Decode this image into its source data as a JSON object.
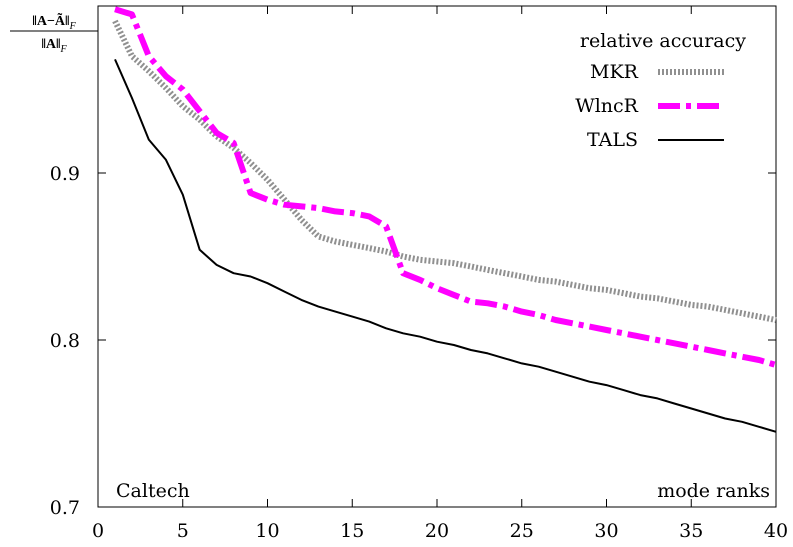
{
  "chart_data": {
    "type": "line",
    "ylabel": {
      "numerator": "‖A−Ã‖",
      "denominator": "‖A‖",
      "subscript": "F"
    },
    "xlabel": "mode ranks",
    "dataset_label": "Caltech",
    "legend_title": "relative accuracy",
    "legend_position": "top-right",
    "xlim": [
      0,
      40
    ],
    "ylim": [
      0.7,
      1.0
    ],
    "xticks": [
      0,
      5,
      10,
      15,
      20,
      25,
      30,
      35,
      40
    ],
    "yticks": [
      0.7,
      0.8,
      0.9
    ],
    "x": [
      1,
      2,
      3,
      4,
      5,
      6,
      7,
      8,
      9,
      10,
      11,
      12,
      13,
      14,
      15,
      16,
      17,
      18,
      19,
      20,
      21,
      22,
      23,
      24,
      25,
      26,
      27,
      28,
      29,
      30,
      31,
      32,
      33,
      34,
      35,
      36,
      37,
      38,
      39,
      40
    ],
    "series": [
      {
        "name": "MKR",
        "color": "#909090",
        "style": "dotted-thick",
        "values": [
          0.991,
          0.97,
          0.961,
          0.951,
          0.94,
          0.932,
          0.922,
          0.915,
          0.906,
          0.896,
          0.884,
          0.872,
          0.862,
          0.859,
          0.857,
          0.855,
          0.853,
          0.85,
          0.848,
          0.847,
          0.846,
          0.844,
          0.842,
          0.84,
          0.838,
          0.836,
          0.835,
          0.833,
          0.831,
          0.83,
          0.828,
          0.826,
          0.825,
          0.823,
          0.821,
          0.82,
          0.818,
          0.816,
          0.814,
          0.812
        ]
      },
      {
        "name": "WlncR",
        "color": "#ff00ff",
        "style": "dash-dot",
        "values": [
          0.998,
          0.995,
          0.97,
          0.958,
          0.95,
          0.937,
          0.924,
          0.918,
          0.888,
          0.884,
          0.881,
          0.88,
          0.879,
          0.877,
          0.876,
          0.874,
          0.868,
          0.84,
          0.836,
          0.831,
          0.827,
          0.823,
          0.822,
          0.82,
          0.817,
          0.815,
          0.812,
          0.81,
          0.808,
          0.806,
          0.804,
          0.802,
          0.8,
          0.798,
          0.796,
          0.794,
          0.792,
          0.79,
          0.788,
          0.785
        ]
      },
      {
        "name": "TALS",
        "color": "#000000",
        "style": "solid",
        "values": [
          0.968,
          0.945,
          0.92,
          0.908,
          0.887,
          0.854,
          0.845,
          0.84,
          0.838,
          0.834,
          0.829,
          0.824,
          0.82,
          0.817,
          0.814,
          0.811,
          0.807,
          0.804,
          0.802,
          0.799,
          0.797,
          0.794,
          0.792,
          0.789,
          0.786,
          0.784,
          0.781,
          0.778,
          0.775,
          0.773,
          0.77,
          0.767,
          0.765,
          0.762,
          0.759,
          0.756,
          0.753,
          0.751,
          0.748,
          0.745
        ]
      }
    ]
  }
}
